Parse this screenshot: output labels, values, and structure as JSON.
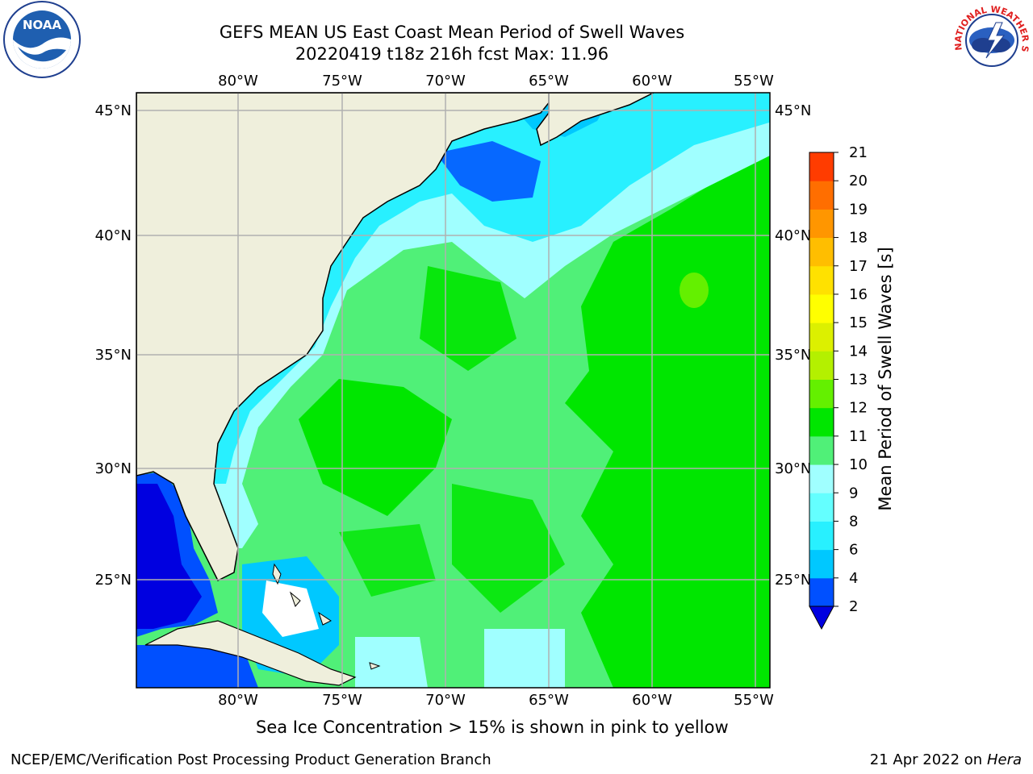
{
  "title_line1": "GEFS MEAN US East Coast Mean Period of Swell Waves",
  "title_line2": "20220419 t18z 216h fcst   Max: 11.96",
  "subtitle": "Sea Ice Concentration > 15% is shown in pink to yellow",
  "footer_left": "NCEP/EMC/Verification Post Processing Product Generation Branch",
  "footer_date": "21 Apr 2022 on ",
  "footer_host": "Hera",
  "logos": {
    "noara_label": "NOAA",
    "nws_label": "NATIONAL WEATHER SERVICE"
  },
  "map": {
    "lon_labels": [
      "80°W",
      "75°W",
      "70°W",
      "65°W",
      "60°W",
      "55°W"
    ],
    "lat_labels": [
      "45°N",
      "40°N",
      "35°N",
      "30°N",
      "25°N"
    ]
  },
  "colorbar": {
    "label": "Mean Period of Swell Waves [s]",
    "ticks": [
      "2",
      "4",
      "6",
      "8",
      "9",
      "10",
      "11",
      "12",
      "13",
      "14",
      "15",
      "16",
      "17",
      "18",
      "19",
      "20",
      "21"
    ],
    "colors": [
      "#0050ff",
      "#00c8ff",
      "#28f0ff",
      "#64ffff",
      "#a0ffff",
      "#50f078",
      "#00e600",
      "#64f000",
      "#b4f000",
      "#dcf000",
      "#ffff00",
      "#ffe100",
      "#ffbe00",
      "#ff9600",
      "#ff6e00",
      "#ff3c00",
      "#ff0000"
    ],
    "underflow_color": "#0000e0"
  }
}
